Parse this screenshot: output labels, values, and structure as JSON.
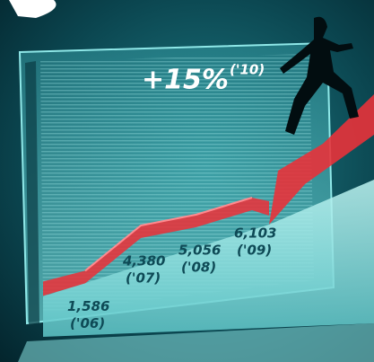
{
  "chart_data": {
    "type": "area",
    "categories": [
      "('06)",
      "('07)",
      "('08)",
      "('09)"
    ],
    "values": [
      1586,
      4380,
      5056,
      6103
    ],
    "value_labels": [
      "1,586",
      "4,380",
      "5,056",
      "6,103"
    ],
    "color": "#e8323a",
    "annotation": {
      "text": "+15%",
      "label": "('10)"
    }
  }
}
